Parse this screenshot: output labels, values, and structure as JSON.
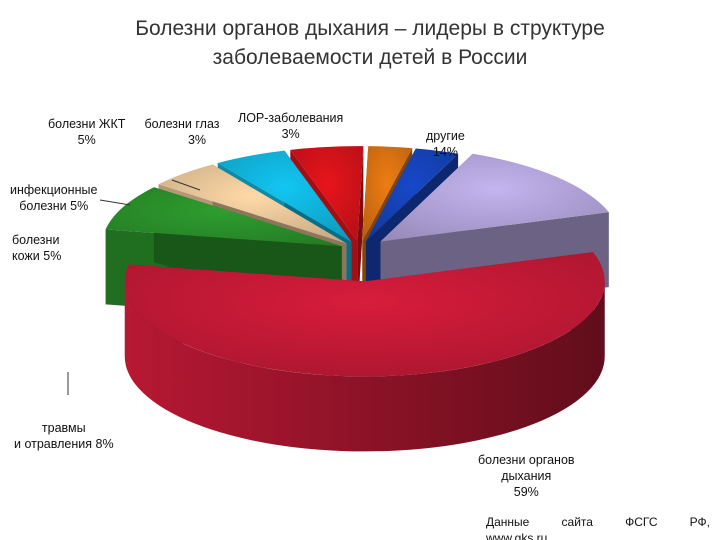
{
  "title": {
    "line1": "Болезни органов дыхания – лидеры в структуре",
    "line2": "заболеваемости детей в России"
  },
  "source": {
    "words": [
      "Данные",
      "сайта",
      "ФСГС",
      "РФ,"
    ],
    "line2": "www.gks.ru"
  },
  "chart_data": {
    "type": "pie",
    "title": "Болезни органов дыхания – лидеры в структуре заболеваемости детей в России",
    "categories": [
      "болезни органов дыхания",
      "травмы и отравления",
      "болезни кожи",
      "инфекционные болезни",
      "болезни ЖКТ",
      "болезни глаз",
      "ЛОР-заболевания",
      "другие"
    ],
    "values": [
      59,
      8,
      5,
      5,
      5,
      3,
      3,
      14
    ],
    "labels": [
      {
        "lines": [
          "болезни органов",
          "дыхания"
        ],
        "pct": "59%"
      },
      {
        "lines": [
          "травмы",
          "и отравления 8%"
        ],
        "pct": ""
      },
      {
        "lines": [
          "болезни",
          "кожи 5%"
        ],
        "pct": ""
      },
      {
        "lines": [
          "инфекционные",
          "болезни 5%"
        ],
        "pct": ""
      },
      {
        "lines": [
          "болезни ЖКТ"
        ],
        "pct": "5%"
      },
      {
        "lines": [
          "болезни глаз"
        ],
        "pct": "3%"
      },
      {
        "lines": [
          "ЛОР-заболевания"
        ],
        "pct": "3%"
      },
      {
        "lines": [
          "другие"
        ],
        "pct": "14%"
      }
    ],
    "colors": [
      "#d81c3c",
      "#2e9e2e",
      "#ffd9a8",
      "#12c6f2",
      "#e8141c",
      "#ee7d13",
      "#1748c8",
      "#c4b4f0"
    ],
    "legend": "none"
  }
}
